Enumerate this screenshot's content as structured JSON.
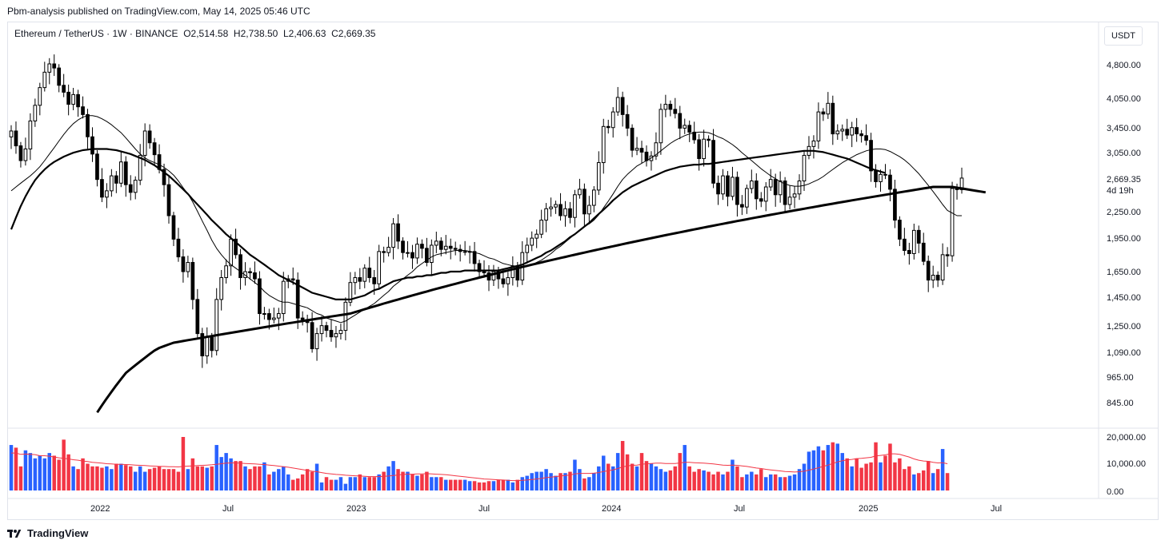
{
  "header": {
    "published_line": "Pbm-analysis published on TradingView.com, May 14, 2025 05:46 UTC"
  },
  "legend": {
    "symbol": "Ethereum / TetherUS · 1W · BINANCE",
    "open_label": "O",
    "open": "2,514.58",
    "high_label": "H",
    "high": "2,738.50",
    "low_label": "L",
    "low": "2,406.63",
    "close_label": "C",
    "close": "2,669.35"
  },
  "currency_button": "USDT",
  "price_axis": {
    "ticks": [
      "4,800.00",
      "4,050.00",
      "3,450.00",
      "3,050.00",
      "2,250.00",
      "1,950.00",
      "1,650.00",
      "1,450.00",
      "1,250.00",
      "1,090.00",
      "965.00",
      "845.00"
    ],
    "last_price": "2,669.35",
    "countdown": "4d 19h"
  },
  "volume_axis": {
    "ticks": [
      "20,000.00",
      "10,000.00",
      "0.00"
    ]
  },
  "time_axis": {
    "labels": [
      "2022",
      "Jul",
      "2023",
      "Jul",
      "2024",
      "Jul",
      "2025",
      "Jul"
    ]
  },
  "footer": {
    "brand": "TradingView"
  },
  "colors": {
    "up_volume": "#2962ff",
    "down_volume": "#f23645",
    "volume_ma": "#f23645",
    "candle": "#000000",
    "grid_border": "#e0e3eb"
  },
  "chart_data": {
    "type": "candlestick",
    "symbol": "ETHUSDT",
    "interval": "1W",
    "price_scale": "log",
    "price_range": [
      780,
      5400
    ],
    "volume_range": [
      0,
      22000
    ],
    "candle_start": "2021-09-13",
    "candles_close": [
      3400,
      3150,
      2920,
      3100,
      3580,
      3880,
      4250,
      4600,
      4800,
      4700,
      4300,
      4150,
      3900,
      4100,
      3850,
      3700,
      3300,
      3020,
      2650,
      2420,
      2500,
      2700,
      2600,
      2900,
      2580,
      2480,
      2640,
      3000,
      3400,
      3200,
      3010,
      2790,
      2580,
      2200,
      1950,
      1780,
      1650,
      1730,
      1430,
      1200,
      1070,
      1180,
      1100,
      1430,
      1600,
      1700,
      1950,
      1800,
      1600,
      1650,
      1640,
      1590,
      1330,
      1330,
      1290,
      1300,
      1330,
      1570,
      1590,
      1580,
      1300,
      1290,
      1270,
      1110,
      1200,
      1250,
      1220,
      1180,
      1200,
      1220,
      1410,
      1560,
      1600,
      1570,
      1680,
      1600,
      1550,
      1830,
      1820,
      1870,
      2110,
      1930,
      1820,
      1820,
      1770,
      1900,
      1860,
      1730,
      1890,
      1930,
      1850,
      1880,
      1860,
      1850,
      1830,
      1830,
      1830,
      1720,
      1650,
      1640,
      1580,
      1650,
      1590,
      1550,
      1600,
      1700,
      1580,
      1820,
      1890,
      1960,
      2000,
      2150,
      2280,
      2300,
      2330,
      2200,
      2280,
      2180,
      2450,
      2520,
      2220,
      2320,
      2510,
      2890,
      3480,
      3460,
      3750,
      4040,
      3700,
      3450,
      3080,
      3110,
      3050,
      2920,
      2990,
      3200,
      3800,
      3900,
      3800,
      3720,
      3450,
      3500,
      3380,
      3250,
      2950,
      3260,
      3240,
      2600,
      2460,
      2700,
      2430,
      2680,
      2330,
      2300,
      2530,
      2630,
      2400,
      2370,
      2550,
      2650,
      2450,
      2630,
      2330,
      2420,
      2460,
      2630,
      3000,
      3140,
      3230,
      3750,
      3710,
      3920,
      3350,
      3400,
      3430,
      3330,
      3460,
      3350,
      3320,
      3240,
      2770,
      2620,
      2720,
      2710,
      2520,
      2150,
      1950,
      1840,
      1810,
      2040,
      1910,
      1740,
      1580,
      1620,
      1580,
      1800,
      1790,
      2530,
      2515,
      2669
    ],
    "sma_20": [
      2500,
      2550,
      2600,
      2650,
      2700,
      2760,
      2830,
      2920,
      3020,
      3120,
      3230,
      3340,
      3440,
      3530,
      3600,
      3650,
      3680,
      3680,
      3660,
      3620,
      3570,
      3510,
      3440,
      3370,
      3280,
      3190,
      3100,
      3020,
      2960,
      2920,
      2890,
      2860,
      2820,
      2770,
      2710,
      2630,
      2540,
      2460,
      2360,
      2250,
      2140,
      2040,
      1940,
      1860,
      1800,
      1750,
      1710,
      1680,
      1650,
      1620,
      1590,
      1560,
      1530,
      1490,
      1460,
      1440,
      1420,
      1410,
      1410,
      1400,
      1390,
      1380,
      1370,
      1350,
      1330,
      1320,
      1300,
      1290,
      1280,
      1270,
      1280,
      1300,
      1320,
      1340,
      1360,
      1380,
      1400,
      1430,
      1460,
      1490,
      1530,
      1560,
      1590,
      1620,
      1650,
      1690,
      1720,
      1750,
      1780,
      1800,
      1810,
      1820,
      1830,
      1840,
      1840,
      1840,
      1830,
      1820,
      1810,
      1790,
      1770,
      1760,
      1740,
      1720,
      1710,
      1700,
      1690,
      1690,
      1700,
      1710,
      1730,
      1750,
      1780,
      1810,
      1850,
      1880,
      1920,
      1960,
      2000,
      2040,
      2080,
      2110,
      2150,
      2210,
      2290,
      2370,
      2460,
      2560,
      2650,
      2720,
      2780,
      2840,
      2880,
      2920,
      2960,
      3010,
      3070,
      3130,
      3190,
      3240,
      3280,
      3320,
      3350,
      3370,
      3380,
      3380,
      3370,
      3340,
      3300,
      3270,
      3220,
      3170,
      3110,
      3040,
      2980,
      2920,
      2860,
      2800,
      2750,
      2700,
      2660,
      2620,
      2590,
      2570,
      2560,
      2560,
      2570,
      2590,
      2620,
      2650,
      2690,
      2740,
      2790,
      2840,
      2890,
      2930,
      2970,
      3010,
      3040,
      3070,
      3090,
      3100,
      3100,
      3090,
      3060,
      3020,
      2980,
      2930,
      2870,
      2800,
      2730,
      2650,
      2570,
      2490,
      2410,
      2330,
      2260,
      2230,
      2200,
      2200
    ],
    "sma_50": [
      2050,
      2180,
      2310,
      2430,
      2540,
      2640,
      2720,
      2790,
      2850,
      2900,
      2940,
      2980,
      3010,
      3040,
      3060,
      3080,
      3090,
      3100,
      3100,
      3100,
      3100,
      3090,
      3080,
      3060,
      3040,
      3020,
      2990,
      2960,
      2930,
      2890,
      2850,
      2800,
      2750,
      2700,
      2640,
      2580,
      2520,
      2460,
      2390,
      2330,
      2270,
      2210,
      2150,
      2100,
      2050,
      2000,
      1960,
      1920,
      1880,
      1840,
      1800,
      1770,
      1740,
      1710,
      1680,
      1650,
      1620,
      1600,
      1580,
      1560,
      1540,
      1520,
      1500,
      1480,
      1470,
      1460,
      1450,
      1440,
      1430,
      1430,
      1430,
      1430,
      1440,
      1450,
      1460,
      1480,
      1500,
      1510,
      1530,
      1550,
      1570,
      1580,
      1590,
      1600,
      1600,
      1610,
      1610,
      1620,
      1620,
      1630,
      1640,
      1640,
      1650,
      1650,
      1650,
      1660,
      1660,
      1660,
      1660,
      1660,
      1660,
      1660,
      1660,
      1670,
      1680,
      1690,
      1700,
      1710,
      1730,
      1750,
      1770,
      1790,
      1820,
      1840,
      1870,
      1900,
      1930,
      1970,
      2000,
      2040,
      2080,
      2120,
      2170,
      2220,
      2270,
      2320,
      2380,
      2430,
      2480,
      2520,
      2560,
      2590,
      2620,
      2650,
      2680,
      2710,
      2740,
      2770,
      2790,
      2810,
      2830,
      2840,
      2850,
      2860,
      2860,
      2870,
      2870,
      2880,
      2890,
      2900,
      2910,
      2920,
      2930,
      2940,
      2950,
      2960,
      2970,
      2980,
      2990,
      3000,
      3010,
      3020,
      3030,
      3040,
      3050,
      3060,
      3070,
      3070,
      3070,
      3060,
      3050,
      3030,
      3010,
      2990,
      2970,
      2950,
      2920,
      2890,
      2860,
      2830,
      2800,
      2780,
      2760,
      2740
    ],
    "sma_200": [
      null,
      null,
      null,
      null,
      null,
      null,
      null,
      null,
      null,
      null,
      null,
      null,
      null,
      null,
      null,
      null,
      null,
      null,
      800,
      830,
      860,
      890,
      920,
      950,
      980,
      1000,
      1020,
      1040,
      1060,
      1080,
      1100,
      1115,
      1125,
      1135,
      1145,
      1150,
      1155,
      1160,
      1165,
      1170,
      1175,
      1180,
      1185,
      1190,
      1195,
      1200,
      1205,
      1210,
      1215,
      1220,
      1225,
      1230,
      1235,
      1240,
      1245,
      1250,
      1255,
      1260,
      1265,
      1270,
      1275,
      1280,
      1285,
      1290,
      1295,
      1300,
      1305,
      1310,
      1315,
      1320,
      1325,
      1330,
      1340,
      1350,
      1360,
      1370,
      1380,
      1390,
      1400,
      1410,
      1420,
      1430,
      1440,
      1450,
      1460,
      1470,
      1480,
      1490,
      1500,
      1510,
      1520,
      1530,
      1540,
      1550,
      1560,
      1570,
      1580,
      1590,
      1600,
      1610,
      1620,
      1630,
      1640,
      1650,
      1660,
      1670,
      1680,
      1690,
      1700,
      1710,
      1720,
      1730,
      1740,
      1750,
      1760,
      1770,
      1780,
      1790,
      1800,
      1810,
      1820,
      1830,
      1840,
      1850,
      1860,
      1870,
      1880,
      1890,
      1900,
      1910,
      1920,
      1930,
      1940,
      1950,
      1960,
      1970,
      1980,
      1990,
      2000,
      2010,
      2020,
      2030,
      2040,
      2050,
      2060,
      2070,
      2080,
      2090,
      2100,
      2110,
      2120,
      2130,
      2140,
      2150,
      2160,
      2170,
      2180,
      2190,
      2200,
      2210,
      2220,
      2230,
      2240,
      2250,
      2260,
      2270,
      2280,
      2290,
      2300,
      2310,
      2320,
      2330,
      2340,
      2350,
      2360,
      2370,
      2380,
      2390,
      2400,
      2410,
      2420,
      2430,
      2440,
      2450,
      2460,
      2470,
      2480,
      2490,
      2500,
      2510,
      2520,
      2530,
      2540,
      2550,
      2550,
      2550,
      2550,
      2550,
      2540,
      2530,
      2520,
      2510,
      2500,
      2490,
      2480
    ],
    "volume": [
      17000,
      16000,
      9000,
      15000,
      14000,
      12000,
      13000,
      12000,
      14000,
      13000,
      11500,
      19000,
      13500,
      9000,
      8000,
      12000,
      10000,
      9000,
      9000,
      8500,
      9000,
      8000,
      10000,
      10000,
      9500,
      9000,
      7000,
      9000,
      7000,
      8000,
      8500,
      9000,
      8000,
      8000,
      8000,
      7000,
      20000,
      8000,
      12000,
      9000,
      9000,
      8500,
      9000,
      17000,
      12500,
      14000,
      12000,
      11000,
      11000,
      9000,
      8000,
      9000,
      9000,
      10500,
      6000,
      7000,
      8000,
      9000,
      6000,
      4000,
      4500,
      6000,
      8000,
      7000,
      10000,
      3000,
      5000,
      4000,
      4000,
      5000,
      2500,
      5000,
      5000,
      6000,
      5000,
      5000,
      5000,
      6000,
      7000,
      9000,
      11000,
      8000,
      7000,
      7000,
      6000,
      5500,
      6000,
      7000,
      5000,
      5000,
      5000,
      4000,
      4000,
      4000,
      4000,
      4000,
      3500,
      3500,
      3000,
      3000,
      3500,
      3500,
      4000,
      4000,
      4000,
      3000,
      4000,
      5000,
      5500,
      6500,
      7000,
      7000,
      8000,
      6500,
      5500,
      6500,
      6500,
      7000,
      11500,
      8000,
      4500,
      5000,
      6500,
      9000,
      13000,
      10000,
      9000,
      14000,
      18500,
      13500,
      10000,
      9000,
      14000,
      11000,
      10000,
      9000,
      8000,
      7000,
      7500,
      9000,
      14000,
      17000,
      9000,
      7000,
      8000,
      7500,
      7000,
      6000,
      7000,
      6000,
      7000,
      11500,
      9000,
      5000,
      6000,
      7000,
      6000,
      8000,
      5000,
      6000,
      6000,
      5000,
      5000,
      5500,
      6000,
      8000,
      10000,
      14500,
      15000,
      16500,
      15000,
      17000,
      18000,
      17500,
      14000,
      12000,
      9000,
      12000,
      8500,
      10000,
      10500,
      18000,
      10500,
      13000,
      17500,
      10500,
      12000,
      8000,
      9000,
      6000,
      6500,
      7500,
      11000,
      6500,
      8000,
      15500,
      6500
    ],
    "volume_ma_20": [
      14000,
      14000,
      13500,
      13600,
      13500,
      13400,
      13000,
      13000,
      12800,
      12500,
      12200,
      12000,
      11800,
      11500,
      11300,
      11000,
      10800,
      10500,
      10400,
      10200,
      10000,
      9900,
      9800,
      9800,
      9700,
      9600,
      9500,
      9400,
      9300,
      9200,
      9100,
      9000,
      9000,
      8900,
      8900,
      8800,
      9000,
      9100,
      9200,
      9300,
      9400,
      9500,
      9600,
      9800,
      10000,
      10200,
      10300,
      10300,
      10200,
      10100,
      10000,
      9900,
      9800,
      9700,
      9500,
      9300,
      9100,
      8900,
      8700,
      8400,
      8100,
      7800,
      7500,
      7200,
      7000,
      6700,
      6400,
      6200,
      6000,
      5900,
      5700,
      5600,
      5500,
      5400,
      5300,
      5200,
      5200,
      5200,
      5300,
      5400,
      5600,
      5800,
      6000,
      6100,
      6100,
      6200,
      6200,
      6300,
      6200,
      6100,
      6000,
      5900,
      5700,
      5500,
      5300,
      5100,
      4900,
      4700,
      4500,
      4300,
      4200,
      4100,
      4000,
      3900,
      3800,
      3700,
      3700,
      3800,
      3900,
      4100,
      4300,
      4500,
      4800,
      5000,
      5200,
      5400,
      5600,
      5800,
      6200,
      6400,
      6400,
      6400,
      6500,
      6700,
      7100,
      7400,
      7700,
      8200,
      8800,
      9200,
      9400,
      9500,
      9800,
      10000,
      10100,
      10200,
      10200,
      10100,
      10100,
      10100,
      10300,
      10500,
      10500,
      10400,
      10300,
      10200,
      10100,
      9900,
      9700,
      9500,
      9400,
      9500,
      9400,
      9200,
      9000,
      8700,
      8400,
      8200,
      7900,
      7700,
      7500,
      7300,
      7100,
      7000,
      6900,
      7000,
      7200,
      7600,
      8000,
      8500,
      9000,
      9500,
      10100,
      10700,
      11100,
      11400,
      11600,
      11900,
      12000,
      12200,
      12400,
      12900,
      13100,
      13300,
      13700,
      13700,
      13500,
      13000,
      12500,
      11800,
      11300,
      11000,
      10900,
      10500,
      10300,
      10400,
      10000
    ]
  }
}
